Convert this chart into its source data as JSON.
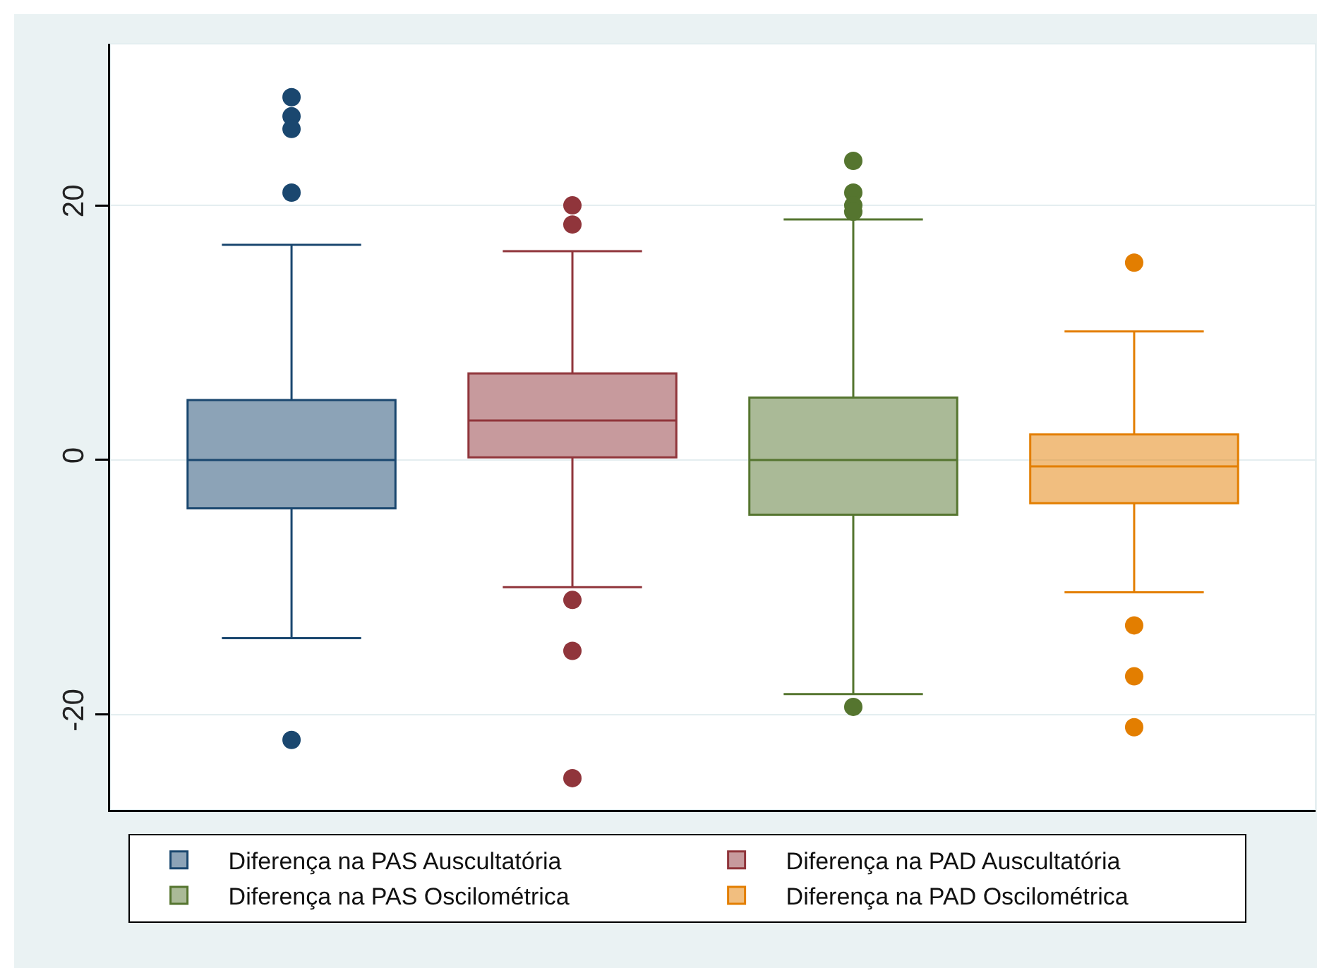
{
  "chart_data": {
    "type": "box",
    "categories": [
      null
    ],
    "ylim": [
      -27.5,
      32.7
    ],
    "yticks": [
      -20,
      0,
      20
    ],
    "grid": "y",
    "legend": "bottom",
    "tick_labels": "y",
    "marker": "circle",
    "series": [
      {
        "name": "Diferença na PAS Auscultatória",
        "color": "#1a476f",
        "boxes": [
          {
            "low": -14,
            "q1": -3.8,
            "median": 0,
            "q3": 4.7,
            "high": 16.9,
            "outliers": [
              28.5,
              27,
              26,
              21,
              -22
            ]
          }
        ]
      },
      {
        "name": "Diferença na PAD Auscultatória",
        "color": "#90353b",
        "boxes": [
          {
            "low": -10,
            "q1": 0.2,
            "median": 3.1,
            "q3": 6.8,
            "high": 16.4,
            "outliers": [
              20,
              18.5,
              -11,
              -15,
              -25
            ]
          }
        ]
      },
      {
        "name": "Diferença na PAS Oscilométrica",
        "color": "#55752f",
        "boxes": [
          {
            "low": -18.4,
            "q1": -4.3,
            "median": 0,
            "q3": 4.9,
            "high": 18.9,
            "outliers": [
              23.5,
              21,
              20,
              19.5,
              -19.4
            ]
          }
        ]
      },
      {
        "name": "Diferença na PAD Oscilométrica",
        "color": "#e37e00",
        "boxes": [
          {
            "low": -10.4,
            "q1": -3.4,
            "median": -0.5,
            "q3": 2,
            "high": 10.1,
            "outliers": [
              15.5,
              -13,
              -17,
              -21
            ]
          }
        ]
      }
    ]
  }
}
